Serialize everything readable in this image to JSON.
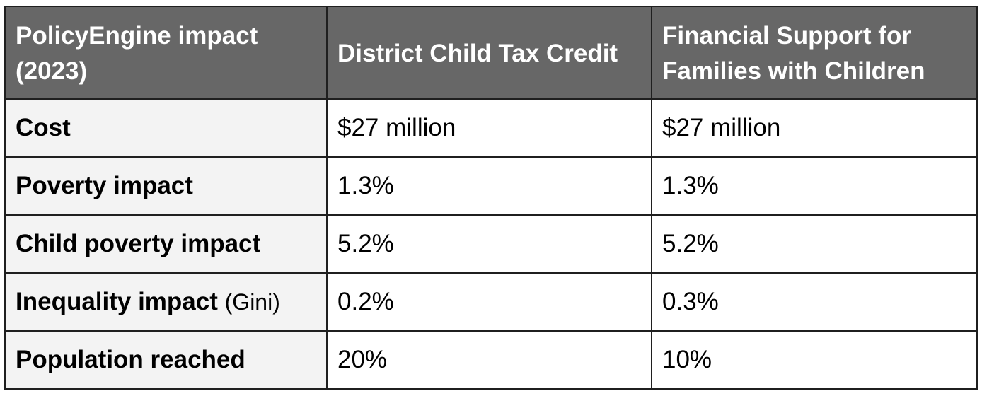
{
  "table": {
    "headers": [
      "PolicyEngine impact (2023)",
      "District Child Tax Credit",
      "Financial Support for Families with Children"
    ],
    "rows": [
      {
        "label": "Cost",
        "note": "",
        "values": [
          "$27 million",
          "$27 million"
        ]
      },
      {
        "label": "Poverty impact",
        "note": "",
        "values": [
          "1.3%",
          "1.3%"
        ]
      },
      {
        "label": "Child poverty impact",
        "note": "",
        "values": [
          "5.2%",
          "5.2%"
        ]
      },
      {
        "label": "Inequality impact",
        "note": "(Gini)",
        "values": [
          "0.2%",
          "0.3%"
        ]
      },
      {
        "label": "Population reached",
        "note": "",
        "values": [
          "20%",
          "10%"
        ]
      }
    ]
  },
  "colors": {
    "header_bg": "#676767",
    "header_text": "#ffffff",
    "row_label_bg": "#f3f3f3",
    "border": "#1f1f1f"
  }
}
